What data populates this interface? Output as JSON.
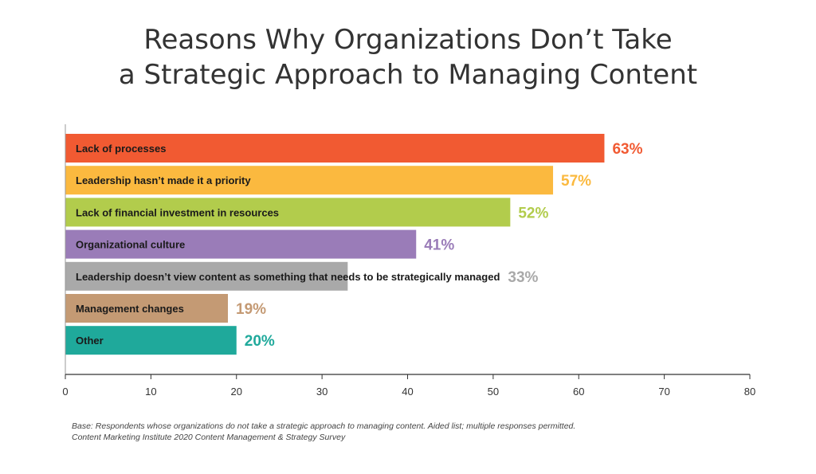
{
  "title": {
    "line1": "Reasons Why Organizations Don’t Take",
    "line2": "a Strategic Approach to Managing Content"
  },
  "footnote": {
    "line1": "Base: Respondents whose organizations do not take a strategic approach to managing content. Aided list; multiple responses permitted.",
    "line2": "Content Marketing Institute 2020 Content Management & Strategy Survey"
  },
  "chart_data": {
    "type": "bar",
    "orientation": "horizontal",
    "categories": [
      "Lack of processes",
      "Leadership hasn’t made it a priority",
      "Lack of financial investment in resources",
      "Organizational culture",
      "Leadership doesn’t view content as something that needs to be strategically managed",
      "Management changes",
      "Other"
    ],
    "values": [
      63,
      57,
      52,
      41,
      33,
      19,
      20
    ],
    "value_labels": [
      "63%",
      "57%",
      "52%",
      "41%",
      "33%",
      "19%",
      "20%"
    ],
    "colors": [
      "#f15a32",
      "#fbb93f",
      "#b2cc4c",
      "#9a7cb8",
      "#a9a9a9",
      "#c49a74",
      "#1fa99b"
    ],
    "xlim": [
      0,
      80
    ],
    "xticks": [
      0,
      10,
      20,
      30,
      40,
      50,
      60,
      70,
      80
    ],
    "grid": false,
    "legend": "none"
  }
}
